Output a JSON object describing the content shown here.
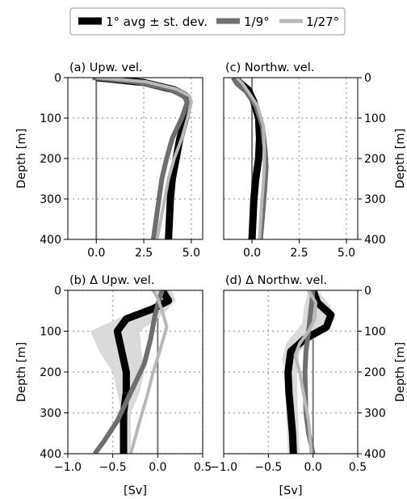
{
  "legend": {
    "placement": "top-center",
    "entries": [
      {
        "label": "1° avg ± st. dev.",
        "color": "#000000"
      },
      {
        "label": "1/9°",
        "color": "#6e6e6e"
      },
      {
        "label": "1/27°",
        "color": "#b8b8b8"
      }
    ]
  },
  "colors": {
    "band": "#dadada",
    "grid": "#b0b0b0",
    "zero_line": "#777777"
  },
  "chart_data": [
    {
      "type": "line",
      "title": "(a) Upw. vel.",
      "ylabel": "Depth [m]",
      "xlabel": "",
      "xlim": [
        -1.5,
        5.6
      ],
      "ylim": [
        400,
        0
      ],
      "xticks": [
        "0.0",
        "2.5",
        "5.0"
      ],
      "xtick_values": [
        0,
        2.5,
        5
      ],
      "yticks": [
        "0",
        "100",
        "200",
        "300",
        "400"
      ],
      "ytick_values": [
        0,
        100,
        200,
        300,
        400
      ],
      "ytick_side": "left",
      "grid": true,
      "series": [
        {
          "name": "1° avg ± st. dev.",
          "points": [
            [
              0,
              0
            ],
            [
              2.5,
              12
            ],
            [
              4.1,
              30
            ],
            [
              4.7,
              45
            ],
            [
              4.85,
              60
            ],
            [
              4.7,
              100
            ],
            [
              4.4,
              150
            ],
            [
              4.2,
              200
            ],
            [
              4.0,
              250
            ],
            [
              3.9,
              300
            ],
            [
              3.85,
              350
            ],
            [
              3.8,
              400
            ]
          ]
        },
        {
          "name": "1/9°",
          "points": [
            [
              -0.2,
              0
            ],
            [
              2.0,
              10
            ],
            [
              3.8,
              28
            ],
            [
              4.6,
              45
            ],
            [
              4.8,
              60
            ],
            [
              4.5,
              100
            ],
            [
              4.0,
              150
            ],
            [
              3.7,
              200
            ],
            [
              3.45,
              250
            ],
            [
              3.3,
              300
            ],
            [
              3.15,
              350
            ],
            [
              3.0,
              400
            ]
          ]
        },
        {
          "name": "1/27°",
          "points": [
            [
              0,
              0
            ],
            [
              2.6,
              10
            ],
            [
              4.2,
              28
            ],
            [
              4.9,
              45
            ],
            [
              5.0,
              60
            ],
            [
              4.8,
              100
            ],
            [
              4.5,
              150
            ],
            [
              4.1,
              200
            ],
            [
              3.8,
              250
            ],
            [
              3.6,
              300
            ],
            [
              3.4,
              350
            ],
            [
              3.2,
              400
            ]
          ]
        }
      ]
    },
    {
      "type": "line",
      "title": "(c) Northw. vel.",
      "ylabel": "Depth [m]",
      "xlabel": "",
      "xlim": [
        -1.5,
        5.6
      ],
      "ylim": [
        400,
        0
      ],
      "xticks": [
        "0.0",
        "2.5",
        "5.0"
      ],
      "xtick_values": [
        0,
        2.5,
        5
      ],
      "yticks": [
        "0",
        "100",
        "200",
        "300",
        "400"
      ],
      "ytick_values": [
        0,
        100,
        200,
        300,
        400
      ],
      "ytick_side": "right",
      "grid": true,
      "series": [
        {
          "name": "1° avg ± st. dev.",
          "points": [
            [
              -0.9,
              0
            ],
            [
              -0.6,
              15
            ],
            [
              -0.2,
              30
            ],
            [
              0.1,
              60
            ],
            [
              0.35,
              100
            ],
            [
              0.4,
              150
            ],
            [
              0.35,
              200
            ],
            [
              0.2,
              250
            ],
            [
              0.1,
              300
            ],
            [
              0.05,
              350
            ],
            [
              0,
              400
            ]
          ]
        },
        {
          "name": "1/9°",
          "points": [
            [
              -1.0,
              0
            ],
            [
              -0.8,
              15
            ],
            [
              -0.3,
              35
            ],
            [
              0.2,
              70
            ],
            [
              0.55,
              120
            ],
            [
              0.7,
              180
            ],
            [
              0.75,
              220
            ],
            [
              0.7,
              260
            ],
            [
              0.6,
              320
            ],
            [
              0.45,
              400
            ]
          ]
        },
        {
          "name": "1/27°",
          "points": [
            [
              -0.8,
              0
            ],
            [
              -0.5,
              15
            ],
            [
              -0.2,
              35
            ],
            [
              0.3,
              70
            ],
            [
              0.6,
              120
            ],
            [
              0.65,
              180
            ],
            [
              0.65,
              220
            ],
            [
              0.6,
              260
            ],
            [
              0.5,
              320
            ],
            [
              0.4,
              400
            ]
          ]
        }
      ]
    },
    {
      "type": "line",
      "title": "(b) Δ Upw. vel.",
      "ylabel": "Depth [m]",
      "xlabel": "[Sv]",
      "xlim": [
        -1.0,
        0.5
      ],
      "ylim": [
        400,
        0
      ],
      "xticks": [
        "−1.0",
        "−0.5",
        "0.0",
        "0.5"
      ],
      "xtick_values": [
        -1,
        -0.5,
        0,
        0.5
      ],
      "yticks": [
        "0",
        "100",
        "200",
        "300",
        "400"
      ],
      "ytick_values": [
        0,
        100,
        200,
        300,
        400
      ],
      "ytick_side": "left",
      "grid": true,
      "band": {
        "points_low": [
          [
            -0.05,
            0
          ],
          [
            0.05,
            25
          ],
          [
            -0.35,
            60
          ],
          [
            -0.75,
            100
          ],
          [
            -0.65,
            150
          ],
          [
            -0.5,
            200
          ],
          [
            -0.45,
            250
          ],
          [
            -0.4,
            300
          ],
          [
            -0.4,
            350
          ],
          [
            -0.4,
            400
          ]
        ],
        "points_high": [
          [
            0.15,
            0
          ],
          [
            0.2,
            25
          ],
          [
            0.05,
            60
          ],
          [
            -0.2,
            100
          ],
          [
            -0.18,
            150
          ],
          [
            -0.15,
            200
          ],
          [
            -0.2,
            250
          ],
          [
            -0.3,
            300
          ],
          [
            -0.3,
            350
          ],
          [
            -0.3,
            400
          ]
        ]
      },
      "series": [
        {
          "name": "1° avg ± st. dev.",
          "points": [
            [
              0.05,
              0
            ],
            [
              0.12,
              25
            ],
            [
              -0.05,
              45
            ],
            [
              -0.35,
              70
            ],
            [
              -0.45,
              100
            ],
            [
              -0.4,
              150
            ],
            [
              -0.35,
              200
            ],
            [
              -0.35,
              250
            ],
            [
              -0.38,
              300
            ],
            [
              -0.38,
              350
            ],
            [
              -0.38,
              400
            ]
          ]
        },
        {
          "name": "1/9°",
          "points": [
            [
              0.05,
              0
            ],
            [
              0.02,
              20
            ],
            [
              -0.03,
              60
            ],
            [
              -0.08,
              120
            ],
            [
              -0.15,
              180
            ],
            [
              -0.3,
              250
            ],
            [
              -0.45,
              320
            ],
            [
              -0.6,
              370
            ],
            [
              -0.7,
              400
            ]
          ]
        },
        {
          "name": "1/27°",
          "points": [
            [
              -0.05,
              0
            ],
            [
              0.0,
              20
            ],
            [
              0.05,
              50
            ],
            [
              0.1,
              90
            ],
            [
              0.02,
              150
            ],
            [
              -0.05,
              200
            ],
            [
              -0.12,
              260
            ],
            [
              -0.2,
              320
            ],
            [
              -0.3,
              400
            ]
          ]
        }
      ]
    },
    {
      "type": "line",
      "title": "(d) Δ Northw. vel.",
      "ylabel": "Depth [m]",
      "xlabel": "[Sv]",
      "xlim": [
        -1.0,
        0.5
      ],
      "ylim": [
        400,
        0
      ],
      "xticks": [
        "−1.0",
        "−0.5",
        "0.0",
        "0.5"
      ],
      "xtick_values": [
        -1,
        -0.5,
        0,
        0.5
      ],
      "yticks": [
        "0",
        "100",
        "200",
        "300",
        "400"
      ],
      "ytick_values": [
        0,
        100,
        200,
        300,
        400
      ],
      "ytick_side": "right",
      "grid": true,
      "band": {
        "points_low": [
          [
            -0.05,
            0
          ],
          [
            -0.1,
            40
          ],
          [
            -0.12,
            80
          ],
          [
            -0.3,
            130
          ],
          [
            -0.35,
            170
          ],
          [
            -0.3,
            200
          ],
          [
            -0.3,
            300
          ],
          [
            -0.28,
            400
          ]
        ],
        "points_high": [
          [
            0.05,
            0
          ],
          [
            0.2,
            40
          ],
          [
            0.25,
            70
          ],
          [
            0.05,
            110
          ],
          [
            -0.15,
            150
          ],
          [
            -0.18,
            200
          ],
          [
            -0.17,
            300
          ],
          [
            -0.15,
            400
          ]
        ]
      },
      "series": [
        {
          "name": "1° avg ± st. dev.",
          "points": [
            [
              0.0,
              0
            ],
            [
              0.05,
              30
            ],
            [
              0.2,
              60
            ],
            [
              0.15,
              90
            ],
            [
              -0.1,
              120
            ],
            [
              -0.25,
              150
            ],
            [
              -0.28,
              200
            ],
            [
              -0.27,
              250
            ],
            [
              -0.25,
              300
            ],
            [
              -0.23,
              350
            ],
            [
              -0.22,
              400
            ]
          ]
        },
        {
          "name": "1/9°",
          "points": [
            [
              0.0,
              0
            ],
            [
              -0.02,
              40
            ],
            [
              -0.05,
              100
            ],
            [
              -0.08,
              150
            ],
            [
              -0.09,
              200
            ],
            [
              -0.08,
              300
            ],
            [
              -0.05,
              350
            ],
            [
              0.0,
              400
            ]
          ]
        },
        {
          "name": "1/27°",
          "points": [
            [
              -0.05,
              0
            ],
            [
              0.03,
              30
            ],
            [
              0.02,
              70
            ],
            [
              -0.05,
              100
            ],
            [
              -0.15,
              130
            ],
            [
              -0.2,
              160
            ],
            [
              -0.15,
              200
            ],
            [
              -0.1,
              260
            ],
            [
              -0.05,
              320
            ],
            [
              -0.02,
              400
            ]
          ]
        }
      ]
    }
  ]
}
